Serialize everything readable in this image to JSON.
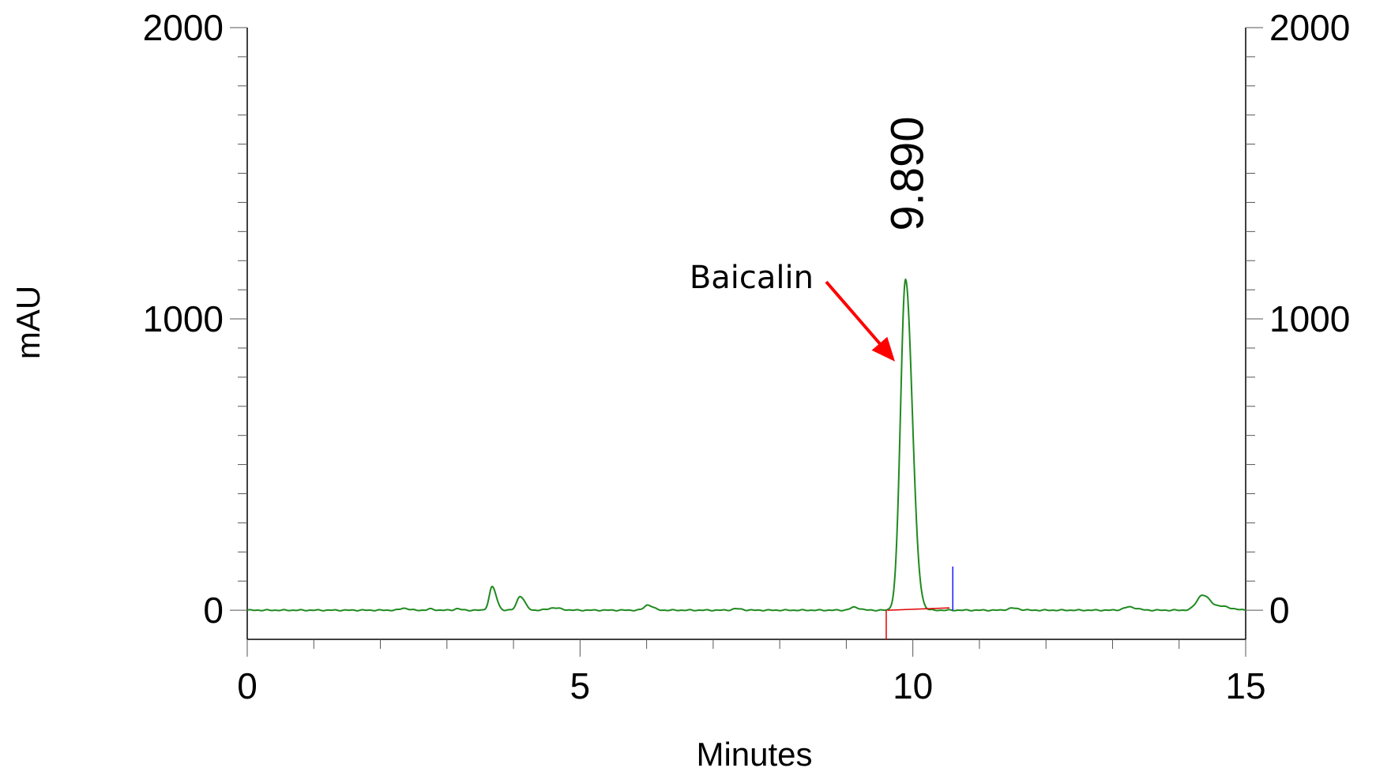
{
  "chart_data": {
    "type": "line",
    "xlabel": "Minutes",
    "ylabel": "mAU",
    "xlim": [
      0,
      15
    ],
    "ylim": [
      -100,
      2000
    ],
    "x_ticks": [
      0,
      5,
      10,
      15
    ],
    "y_ticks": [
      0,
      1000,
      2000
    ],
    "x_tick_labels": [
      "0",
      "5",
      "10",
      "15"
    ],
    "y_tick_labels": [
      "0",
      "1000",
      "2000"
    ],
    "grid": false,
    "series": [
      {
        "color": "#1f8a1f",
        "baseline": 0,
        "noise_amplitude": 2,
        "peaks": [
          {
            "rt": 2.35,
            "height": 7,
            "width": 0.05
          },
          {
            "rt": 2.75,
            "height": 4,
            "width": 0.04
          },
          {
            "rt": 3.15,
            "height": 5,
            "width": 0.04
          },
          {
            "rt": 3.68,
            "height": 80,
            "width": 0.045
          },
          {
            "rt": 4.1,
            "height": 48,
            "width": 0.05
          },
          {
            "rt": 4.6,
            "height": 8,
            "width": 0.08
          },
          {
            "rt": 6.02,
            "height": 18,
            "width": 0.055
          },
          {
            "rt": 7.35,
            "height": 5,
            "width": 0.06
          },
          {
            "rt": 9.12,
            "height": 10,
            "width": 0.06
          },
          {
            "rt": 9.89,
            "height": 1135,
            "width": 0.075
          },
          {
            "rt": 11.5,
            "height": 7,
            "width": 0.07
          },
          {
            "rt": 13.25,
            "height": 11,
            "width": 0.08
          },
          {
            "rt": 14.35,
            "height": 52,
            "width": 0.085
          },
          {
            "rt": 14.65,
            "height": 12,
            "width": 0.1
          }
        ]
      }
    ],
    "integration": {
      "baseline_start": {
        "x": 9.62,
        "y": 0,
        "color": "#e00000"
      },
      "baseline_end": {
        "x": 10.55,
        "y": 8,
        "color": "#e00000"
      },
      "start_marker": {
        "x": 9.6,
        "y_top": 0,
        "y_bottom": -100,
        "color": "#e00000"
      },
      "end_marker": {
        "x": 10.6,
        "y_top": 150,
        "y_bottom": 0,
        "color": "#1a1aff"
      }
    },
    "annotations": [
      {
        "text": "9.890",
        "x": 9.89,
        "rotation": -90,
        "kind": "peak-label"
      },
      {
        "text": "Baicalin",
        "arrow_color": "#ff0000",
        "kind": "compound"
      }
    ]
  }
}
